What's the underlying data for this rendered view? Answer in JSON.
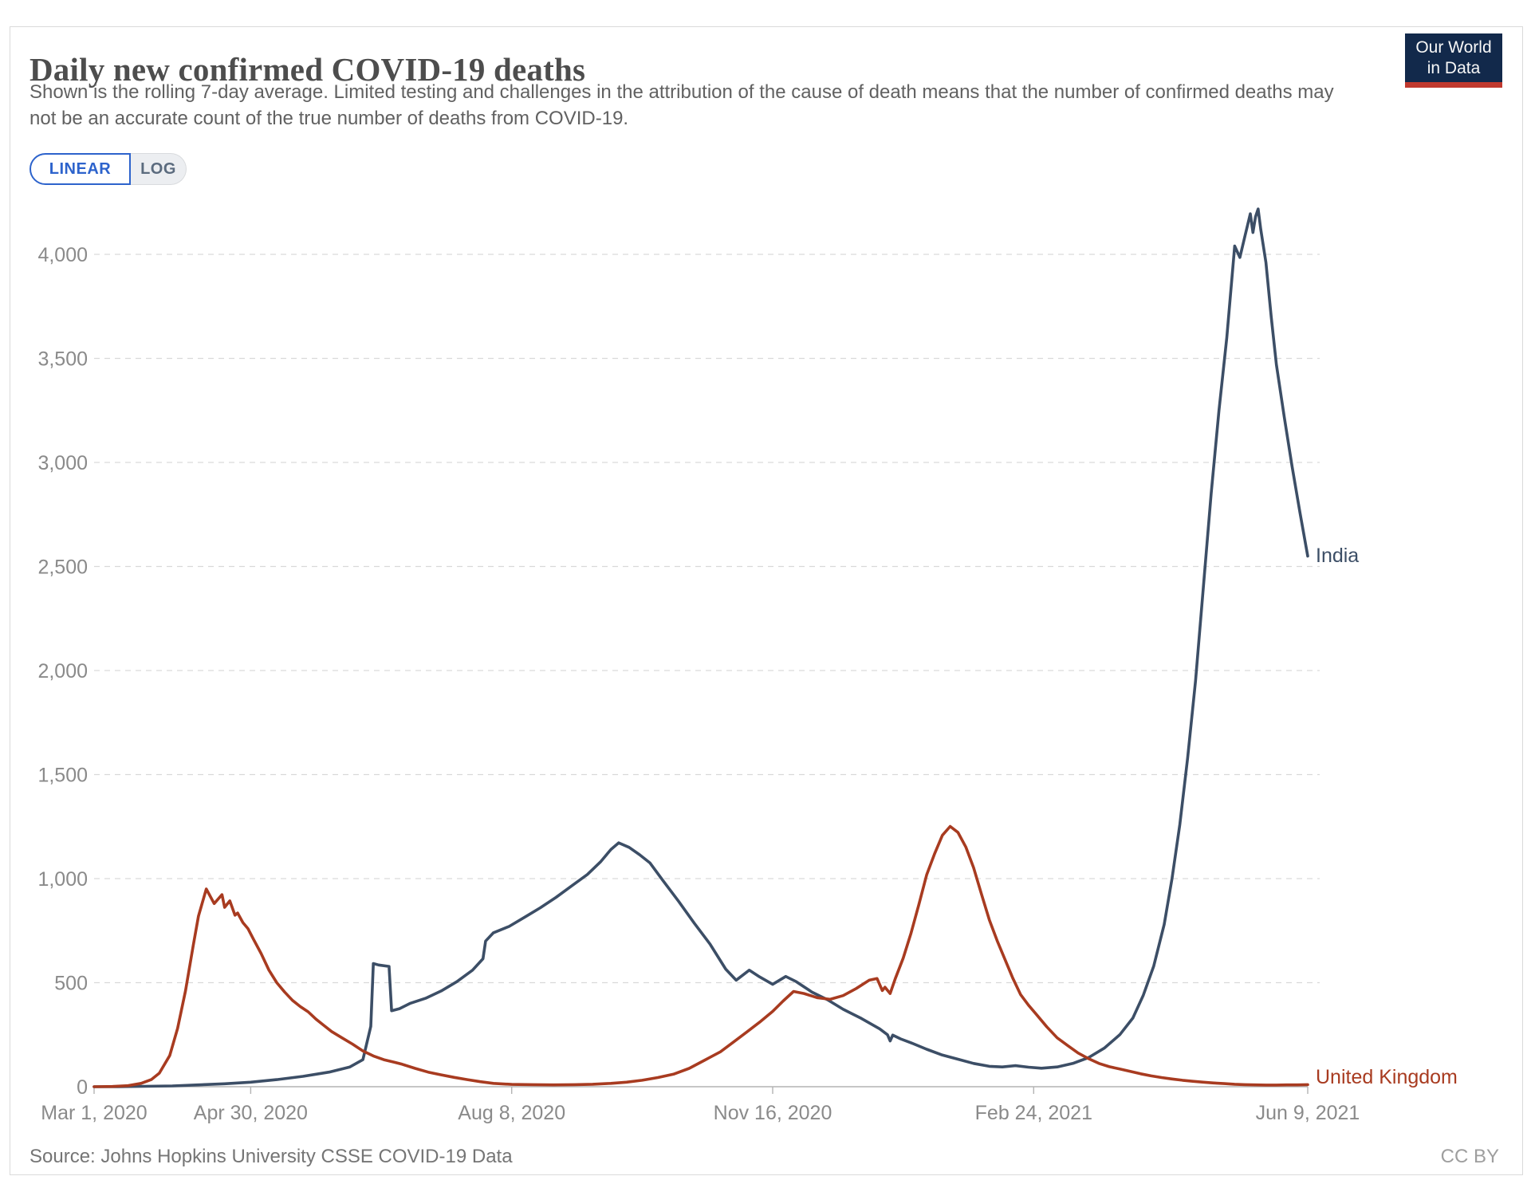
{
  "header": {
    "title": "Daily new confirmed COVID-19 deaths",
    "subtitle": "Shown is the rolling 7-day average. Limited testing and challenges in the attribution of the cause of death means that the number of confirmed deaths may not be an accurate count of the true number of deaths from COVID-19.",
    "logo_line1": "Our World",
    "logo_line2": "in Data"
  },
  "controls": {
    "linear_label": "LINEAR",
    "log_label": "LOG",
    "active_scale": "LINEAR"
  },
  "footer": {
    "source": "Source: Johns Hopkins University CSSE COVID-19 Data",
    "license": "CC BY"
  },
  "colors": {
    "india_line": "#3c4e66",
    "uk_line": "#a83b20",
    "gridline": "#d9d9d9",
    "axis": "#b3b3b3",
    "tick_label": "#8a8a8a",
    "toggle_blue": "#2d63cc",
    "logo_navy": "#12294b",
    "logo_red": "#c0392e"
  },
  "chart_data": {
    "type": "line",
    "title": "Daily new confirmed COVID-19 deaths",
    "xlabel": "",
    "ylabel": "",
    "grid": true,
    "legend_position": "end-of-line",
    "ylim": [
      0,
      4300
    ],
    "x_range": [
      "2020-03-01",
      "2021-06-09"
    ],
    "yticks": [
      {
        "value": 0,
        "label": "0"
      },
      {
        "value": 500,
        "label": "500"
      },
      {
        "value": 1000,
        "label": "1,000"
      },
      {
        "value": 1500,
        "label": "1,500"
      },
      {
        "value": 2000,
        "label": "2,000"
      },
      {
        "value": 2500,
        "label": "2,500"
      },
      {
        "value": 3000,
        "label": "3,000"
      },
      {
        "value": 3500,
        "label": "3,500"
      },
      {
        "value": 4000,
        "label": "4,000"
      }
    ],
    "xticks": [
      {
        "date": "2020-03-01",
        "label": "Mar 1, 2020"
      },
      {
        "date": "2020-04-30",
        "label": "Apr 30, 2020"
      },
      {
        "date": "2020-08-08",
        "label": "Aug 8, 2020"
      },
      {
        "date": "2020-11-16",
        "label": "Nov 16, 2020"
      },
      {
        "date": "2021-02-24",
        "label": "Feb 24, 2021"
      },
      {
        "date": "2021-06-09",
        "label": "Jun 9, 2021"
      }
    ],
    "series": [
      {
        "name": "India",
        "color": "#3c4e66",
        "points": [
          [
            "2020-03-01",
            0
          ],
          [
            "2020-03-10",
            0
          ],
          [
            "2020-03-20",
            2
          ],
          [
            "2020-03-31",
            4
          ],
          [
            "2020-04-10",
            9
          ],
          [
            "2020-04-20",
            14
          ],
          [
            "2020-04-30",
            22
          ],
          [
            "2020-05-10",
            34
          ],
          [
            "2020-05-20",
            50
          ],
          [
            "2020-05-30",
            70
          ],
          [
            "2020-06-07",
            95
          ],
          [
            "2020-06-12",
            130
          ],
          [
            "2020-06-15",
            290
          ],
          [
            "2020-06-16",
            592
          ],
          [
            "2020-06-18",
            585
          ],
          [
            "2020-06-22",
            578
          ],
          [
            "2020-06-23",
            365
          ],
          [
            "2020-06-26",
            375
          ],
          [
            "2020-06-30",
            400
          ],
          [
            "2020-07-06",
            425
          ],
          [
            "2020-07-12",
            460
          ],
          [
            "2020-07-18",
            505
          ],
          [
            "2020-07-24",
            560
          ],
          [
            "2020-07-28",
            615
          ],
          [
            "2020-07-29",
            700
          ],
          [
            "2020-08-01",
            740
          ],
          [
            "2020-08-07",
            770
          ],
          [
            "2020-08-13",
            815
          ],
          [
            "2020-08-19",
            860
          ],
          [
            "2020-08-25",
            910
          ],
          [
            "2020-08-31",
            965
          ],
          [
            "2020-09-06",
            1020
          ],
          [
            "2020-09-11",
            1080
          ],
          [
            "2020-09-15",
            1140
          ],
          [
            "2020-09-18",
            1172
          ],
          [
            "2020-09-22",
            1150
          ],
          [
            "2020-09-26",
            1115
          ],
          [
            "2020-09-30",
            1075
          ],
          [
            "2020-10-05",
            990
          ],
          [
            "2020-10-11",
            890
          ],
          [
            "2020-10-17",
            785
          ],
          [
            "2020-10-23",
            685
          ],
          [
            "2020-10-29",
            565
          ],
          [
            "2020-11-02",
            512
          ],
          [
            "2020-11-07",
            560
          ],
          [
            "2020-11-11",
            528
          ],
          [
            "2020-11-16",
            492
          ],
          [
            "2020-11-21",
            530
          ],
          [
            "2020-11-25",
            505
          ],
          [
            "2020-12-01",
            455
          ],
          [
            "2020-12-07",
            418
          ],
          [
            "2020-12-13",
            372
          ],
          [
            "2020-12-20",
            328
          ],
          [
            "2020-12-27",
            278
          ],
          [
            "2020-12-30",
            250
          ],
          [
            "2020-12-31",
            220
          ],
          [
            "2021-01-01",
            248
          ],
          [
            "2021-01-04",
            230
          ],
          [
            "2021-01-08",
            211
          ],
          [
            "2021-01-14",
            180
          ],
          [
            "2021-01-20",
            152
          ],
          [
            "2021-01-26",
            132
          ],
          [
            "2021-02-01",
            112
          ],
          [
            "2021-02-07",
            98
          ],
          [
            "2021-02-12",
            95
          ],
          [
            "2021-02-17",
            101
          ],
          [
            "2021-02-22",
            94
          ],
          [
            "2021-02-27",
            89
          ],
          [
            "2021-03-05",
            95
          ],
          [
            "2021-03-11",
            112
          ],
          [
            "2021-03-17",
            140
          ],
          [
            "2021-03-23",
            185
          ],
          [
            "2021-03-29",
            250
          ],
          [
            "2021-04-03",
            330
          ],
          [
            "2021-04-07",
            440
          ],
          [
            "2021-04-11",
            580
          ],
          [
            "2021-04-15",
            780
          ],
          [
            "2021-04-18",
            1000
          ],
          [
            "2021-04-21",
            1260
          ],
          [
            "2021-04-24",
            1580
          ],
          [
            "2021-04-27",
            1950
          ],
          [
            "2021-04-30",
            2400
          ],
          [
            "2021-05-03",
            2850
          ],
          [
            "2021-05-06",
            3250
          ],
          [
            "2021-05-09",
            3600
          ],
          [
            "2021-05-12",
            4040
          ],
          [
            "2021-05-14",
            3985
          ],
          [
            "2021-05-16",
            4090
          ],
          [
            "2021-05-18",
            4195
          ],
          [
            "2021-05-19",
            4105
          ],
          [
            "2021-05-20",
            4180
          ],
          [
            "2021-05-21",
            4218
          ],
          [
            "2021-05-22",
            4120
          ],
          [
            "2021-05-24",
            3960
          ],
          [
            "2021-05-26",
            3700
          ],
          [
            "2021-05-28",
            3470
          ],
          [
            "2021-05-31",
            3220
          ],
          [
            "2021-06-03",
            2980
          ],
          [
            "2021-06-06",
            2760
          ],
          [
            "2021-06-09",
            2550
          ]
        ]
      },
      {
        "name": "United Kingdom",
        "color": "#a83b20",
        "points": [
          [
            "2020-03-01",
            0
          ],
          [
            "2020-03-08",
            1
          ],
          [
            "2020-03-14",
            5
          ],
          [
            "2020-03-19",
            16
          ],
          [
            "2020-03-23",
            35
          ],
          [
            "2020-03-26",
            65
          ],
          [
            "2020-03-30",
            150
          ],
          [
            "2020-04-02",
            280
          ],
          [
            "2020-04-05",
            460
          ],
          [
            "2020-04-08",
            680
          ],
          [
            "2020-04-10",
            820
          ],
          [
            "2020-04-13",
            950
          ],
          [
            "2020-04-16",
            880
          ],
          [
            "2020-04-19",
            923
          ],
          [
            "2020-04-20",
            862
          ],
          [
            "2020-04-22",
            893
          ],
          [
            "2020-04-24",
            824
          ],
          [
            "2020-04-25",
            835
          ],
          [
            "2020-04-27",
            789
          ],
          [
            "2020-04-29",
            759
          ],
          [
            "2020-05-01",
            710
          ],
          [
            "2020-05-04",
            640
          ],
          [
            "2020-05-07",
            560
          ],
          [
            "2020-05-10",
            500
          ],
          [
            "2020-05-13",
            455
          ],
          [
            "2020-05-16",
            415
          ],
          [
            "2020-05-19",
            385
          ],
          [
            "2020-05-22",
            360
          ],
          [
            "2020-05-25",
            325
          ],
          [
            "2020-05-28",
            295
          ],
          [
            "2020-05-31",
            265
          ],
          [
            "2020-06-04",
            235
          ],
          [
            "2020-06-08",
            205
          ],
          [
            "2020-06-12",
            172
          ],
          [
            "2020-06-16",
            148
          ],
          [
            "2020-06-20",
            130
          ],
          [
            "2020-06-24",
            118
          ],
          [
            "2020-06-27",
            108
          ],
          [
            "2020-07-02",
            88
          ],
          [
            "2020-07-07",
            70
          ],
          [
            "2020-07-12",
            57
          ],
          [
            "2020-07-17",
            45
          ],
          [
            "2020-07-22",
            34
          ],
          [
            "2020-07-27",
            24
          ],
          [
            "2020-08-01",
            16
          ],
          [
            "2020-08-08",
            11
          ],
          [
            "2020-08-16",
            10
          ],
          [
            "2020-08-24",
            9
          ],
          [
            "2020-09-01",
            10
          ],
          [
            "2020-09-08",
            12
          ],
          [
            "2020-09-15",
            16
          ],
          [
            "2020-09-21",
            22
          ],
          [
            "2020-09-27",
            31
          ],
          [
            "2020-10-03",
            44
          ],
          [
            "2020-10-09",
            60
          ],
          [
            "2020-10-15",
            88
          ],
          [
            "2020-10-21",
            128
          ],
          [
            "2020-10-27",
            168
          ],
          [
            "2020-11-01",
            215
          ],
          [
            "2020-11-06",
            262
          ],
          [
            "2020-11-11",
            310
          ],
          [
            "2020-11-16",
            362
          ],
          [
            "2020-11-20",
            412
          ],
          [
            "2020-11-24",
            458
          ],
          [
            "2020-11-28",
            448
          ],
          [
            "2020-12-03",
            428
          ],
          [
            "2020-12-08",
            420
          ],
          [
            "2020-12-13",
            438
          ],
          [
            "2020-12-18",
            472
          ],
          [
            "2020-12-23",
            512
          ],
          [
            "2020-12-26",
            520
          ],
          [
            "2020-12-28",
            462
          ],
          [
            "2020-12-29",
            478
          ],
          [
            "2020-12-31",
            448
          ],
          [
            "2021-01-02",
            520
          ],
          [
            "2021-01-05",
            618
          ],
          [
            "2021-01-08",
            738
          ],
          [
            "2021-01-11",
            875
          ],
          [
            "2021-01-14",
            1018
          ],
          [
            "2021-01-17",
            1118
          ],
          [
            "2021-01-20",
            1208
          ],
          [
            "2021-01-23",
            1251
          ],
          [
            "2021-01-26",
            1222
          ],
          [
            "2021-01-29",
            1152
          ],
          [
            "2021-02-01",
            1052
          ],
          [
            "2021-02-04",
            925
          ],
          [
            "2021-02-07",
            802
          ],
          [
            "2021-02-10",
            702
          ],
          [
            "2021-02-13",
            612
          ],
          [
            "2021-02-16",
            522
          ],
          [
            "2021-02-19",
            442
          ],
          [
            "2021-02-22",
            392
          ],
          [
            "2021-02-25",
            348
          ],
          [
            "2021-03-01",
            288
          ],
          [
            "2021-03-05",
            235
          ],
          [
            "2021-03-09",
            198
          ],
          [
            "2021-03-13",
            162
          ],
          [
            "2021-03-17",
            135
          ],
          [
            "2021-03-21",
            112
          ],
          [
            "2021-03-25",
            96
          ],
          [
            "2021-03-29",
            85
          ],
          [
            "2021-04-02",
            74
          ],
          [
            "2021-04-06",
            62
          ],
          [
            "2021-04-10",
            52
          ],
          [
            "2021-04-14",
            44
          ],
          [
            "2021-04-18",
            37
          ],
          [
            "2021-04-22",
            31
          ],
          [
            "2021-04-26",
            26
          ],
          [
            "2021-04-30",
            22
          ],
          [
            "2021-05-04",
            18
          ],
          [
            "2021-05-08",
            15
          ],
          [
            "2021-05-12",
            12
          ],
          [
            "2021-05-16",
            10
          ],
          [
            "2021-05-20",
            9
          ],
          [
            "2021-05-24",
            8
          ],
          [
            "2021-05-28",
            8
          ],
          [
            "2021-06-01",
            9
          ],
          [
            "2021-06-05",
            9
          ],
          [
            "2021-06-09",
            10
          ]
        ]
      }
    ]
  }
}
